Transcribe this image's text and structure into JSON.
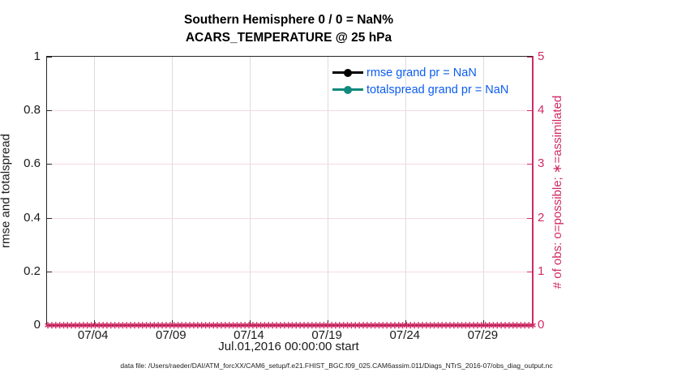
{
  "title": {
    "line1": "Southern Hemisphere 0 / 0 = NaN%",
    "line2": "ACARS_TEMPERATURE @ 25 hPa"
  },
  "chart_data": {
    "type": "line",
    "title": "Southern Hemisphere 0 / 0 = NaN%",
    "subtitle": "ACARS_TEMPERATURE @ 25 hPa",
    "xlabel": "Jul.01,2016 00:00:00 start",
    "ylabel_left": "rmse and totalspread",
    "ylabel_right": "# of obs: o=possible; ∗=assimilated",
    "x_start": "Jul.01,2016 00:00:00",
    "xlim_days": [
      0,
      31.1
    ],
    "x_tick_days": [
      3,
      8,
      13,
      18,
      23,
      28
    ],
    "x_tick_labels": [
      "07/04",
      "07/09",
      "07/14",
      "07/19",
      "07/24",
      "07/29"
    ],
    "ylim_left": [
      0,
      1
    ],
    "yticks_left": [
      "0",
      "0.2",
      "0.4",
      "0.6",
      "0.8",
      "1"
    ],
    "ylim_right": [
      0,
      5
    ],
    "yticks_right": [
      "0",
      "1",
      "2",
      "3",
      "4",
      "5"
    ],
    "grid": true,
    "legend_position": "upper-right-inside",
    "series": [
      {
        "name": "rmse",
        "label": "rmse grand pr = NaN",
        "color": "#000000",
        "values": []
      },
      {
        "name": "totalspread",
        "label": "totalspread grand pr = NaN",
        "color": "#108a7c",
        "values": []
      }
    ],
    "observation_markers": {
      "symbol": "∗",
      "meaning": "assimilated",
      "y_value": 0,
      "count": 124,
      "color": "#d02a66"
    }
  },
  "colors": {
    "crimson_axis": "#d02a66",
    "teal_series": "#108a7c",
    "legend_text_blue": "#0b5cf0",
    "vgrid_gray": "#dcdcdc",
    "hgrid_pink": "#f6d9e4"
  },
  "footer": {
    "text": "data file: /Users/raeder/DAI/ATM_forcXX/CAM6_setup/f.e21.FHIST_BGC.f09_025.CAM6assim.011/Diags_NTrS_2016-07/obs_diag_output.nc"
  }
}
